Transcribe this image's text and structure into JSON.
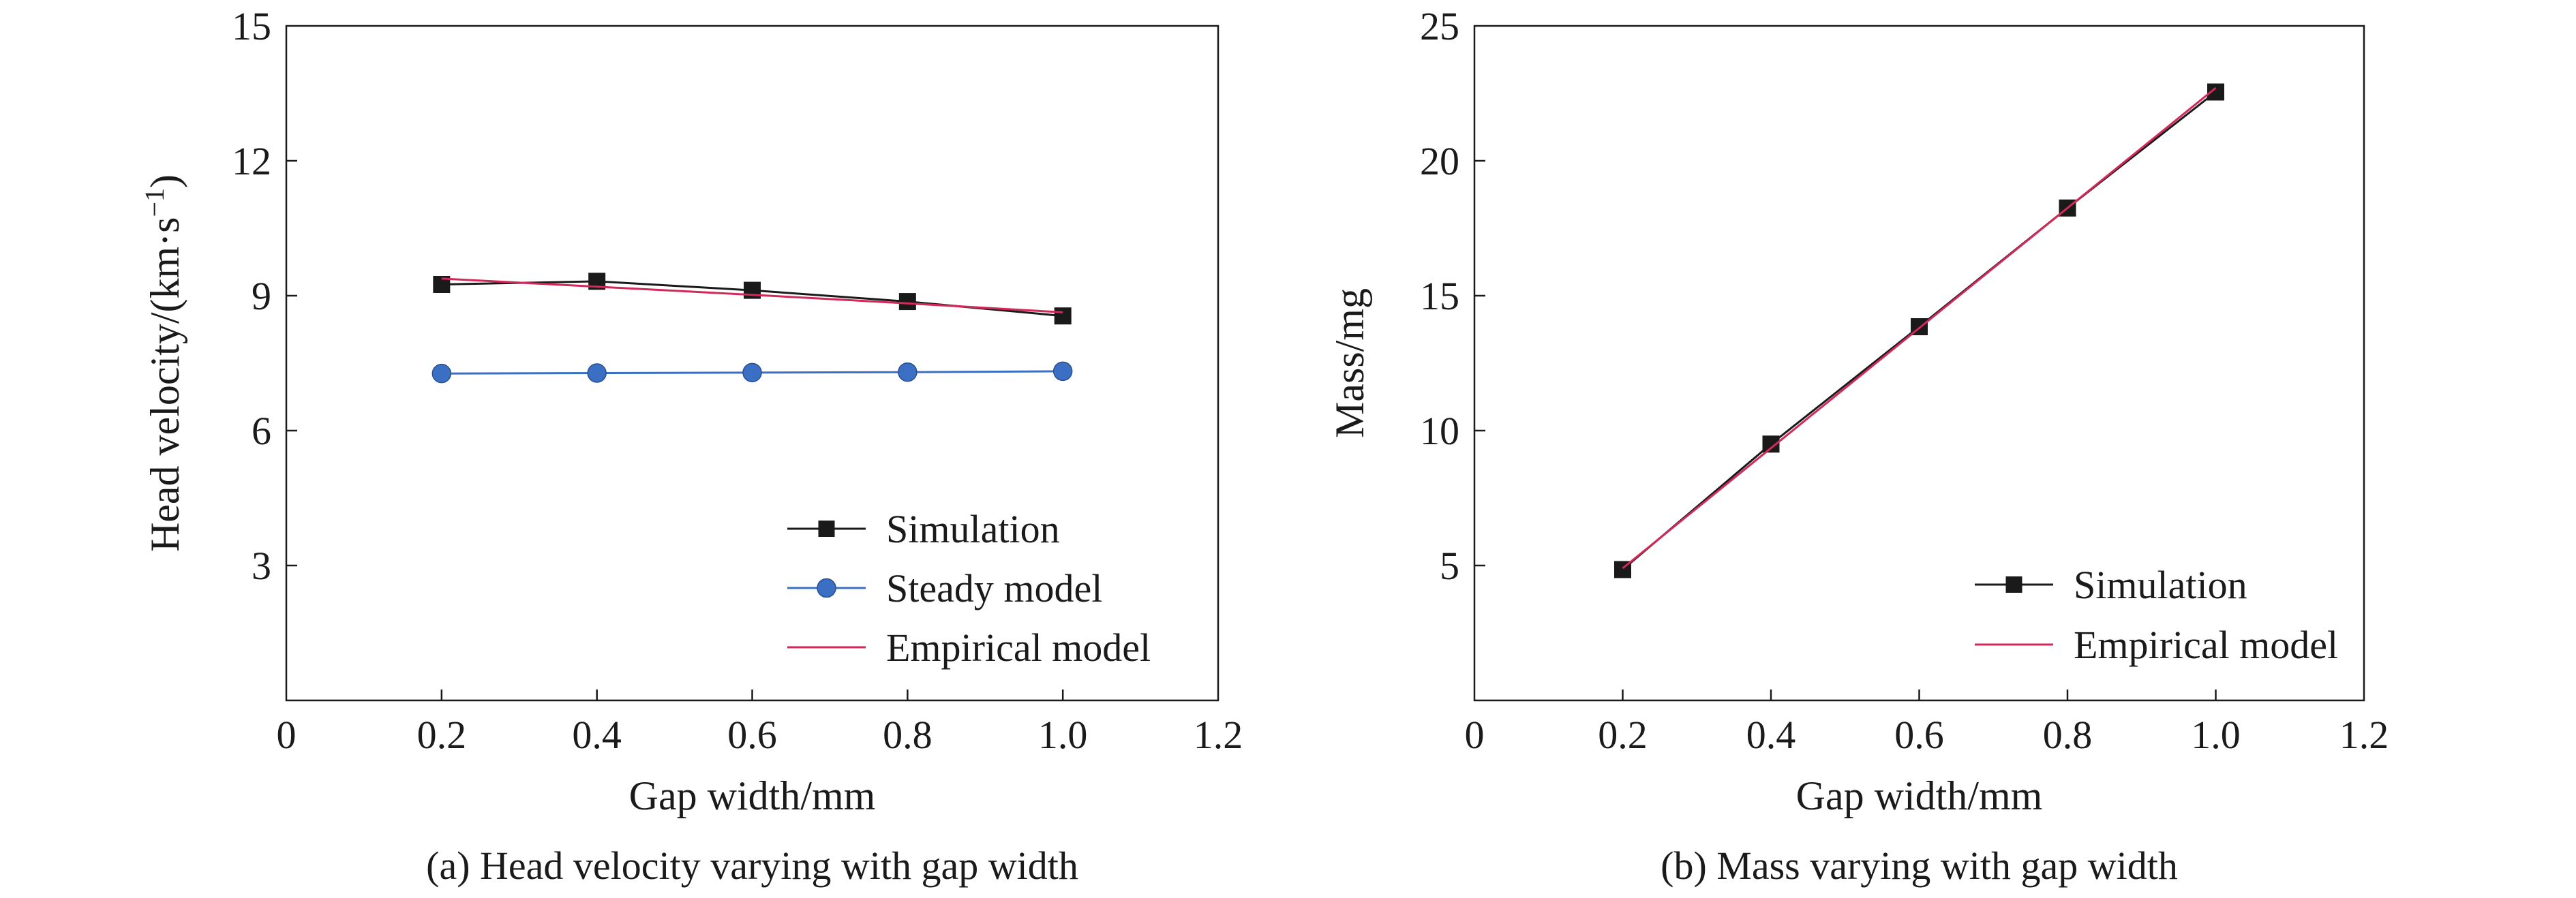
{
  "chart_data": [
    {
      "type": "line",
      "title": "",
      "caption": "(a) Head velocity varying with gap width",
      "xlabel": "Gap width/mm",
      "ylabel": "Head velocity/(km·s⁻¹)",
      "xlim": [
        0,
        1.2
      ],
      "ylim": [
        0,
        15
      ],
      "xticks": [
        "0",
        "0.2",
        "0.4",
        "0.6",
        "0.8",
        "1.0",
        "1.2"
      ],
      "xtick_values": [
        0,
        0.2,
        0.4,
        0.6,
        0.8,
        1.0,
        1.2
      ],
      "yticks": [
        "3",
        "6",
        "9",
        "12",
        "15"
      ],
      "ytick_values": [
        3,
        6,
        9,
        12,
        15
      ],
      "grid": false,
      "legend_position": "bottom-right",
      "x": [
        0.2,
        0.4,
        0.6,
        0.8,
        1.0
      ],
      "series": [
        {
          "name": "Simulation",
          "marker": "square",
          "color": "#1a1a1a",
          "values": [
            9.25,
            9.32,
            9.12,
            8.87,
            8.55
          ]
        },
        {
          "name": "Steady model",
          "marker": "circle",
          "color": "#3a6fc4",
          "values": [
            7.27,
            7.28,
            7.29,
            7.3,
            7.32
          ]
        },
        {
          "name": "Empirical model",
          "marker": "none",
          "color": "#d2295b",
          "values": [
            9.38,
            9.2,
            9.02,
            8.83,
            8.63
          ]
        }
      ]
    },
    {
      "type": "line",
      "title": "",
      "caption": "(b) Mass varying with gap width",
      "xlabel": "Gap width/mm",
      "ylabel": "Mass/mg",
      "xlim": [
        0,
        1.2
      ],
      "ylim": [
        0,
        25
      ],
      "xticks": [
        "0",
        "0.2",
        "0.4",
        "0.6",
        "0.8",
        "1.0",
        "1.2"
      ],
      "xtick_values": [
        0,
        0.2,
        0.4,
        0.6,
        0.8,
        1.0,
        1.2
      ],
      "yticks": [
        "5",
        "10",
        "15",
        "20",
        "25"
      ],
      "ytick_values": [
        5,
        10,
        15,
        20,
        25
      ],
      "grid": false,
      "legend_position": "bottom-right",
      "x": [
        0.2,
        0.4,
        0.6,
        0.8,
        1.0
      ],
      "series": [
        {
          "name": "Simulation",
          "marker": "square",
          "color": "#1a1a1a",
          "values": [
            4.85,
            9.5,
            13.85,
            18.25,
            22.55
          ]
        },
        {
          "name": "Empirical model",
          "marker": "none",
          "color": "#d2295b",
          "values": [
            4.9,
            9.35,
            13.8,
            18.25,
            22.7
          ]
        }
      ]
    }
  ]
}
